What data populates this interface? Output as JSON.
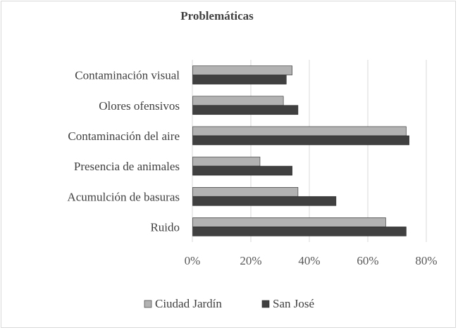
{
  "chart_data": {
    "type": "bar",
    "orientation": "horizontal",
    "title": "Problemáticas",
    "categories": [
      "Contaminación visual",
      "Olores ofensivos",
      "Contaminación del aire",
      "Presencia de animales",
      "Acumulción de basuras",
      "Ruido"
    ],
    "series": [
      {
        "name": "Ciudad Jardín",
        "color": "#b2b2b2",
        "values": [
          34,
          31,
          73,
          23,
          36,
          66
        ]
      },
      {
        "name": "San José",
        "color": "#404040",
        "values": [
          32,
          36,
          74,
          34,
          49,
          73
        ]
      }
    ],
    "xlim": [
      0,
      80
    ],
    "x_ticks": [
      0,
      20,
      40,
      60,
      80
    ],
    "x_tick_labels": [
      "0%",
      "20%",
      "40%",
      "60%",
      "80%"
    ],
    "xlabel": "",
    "ylabel": "",
    "grid": "vertical",
    "legend_position": "bottom"
  }
}
